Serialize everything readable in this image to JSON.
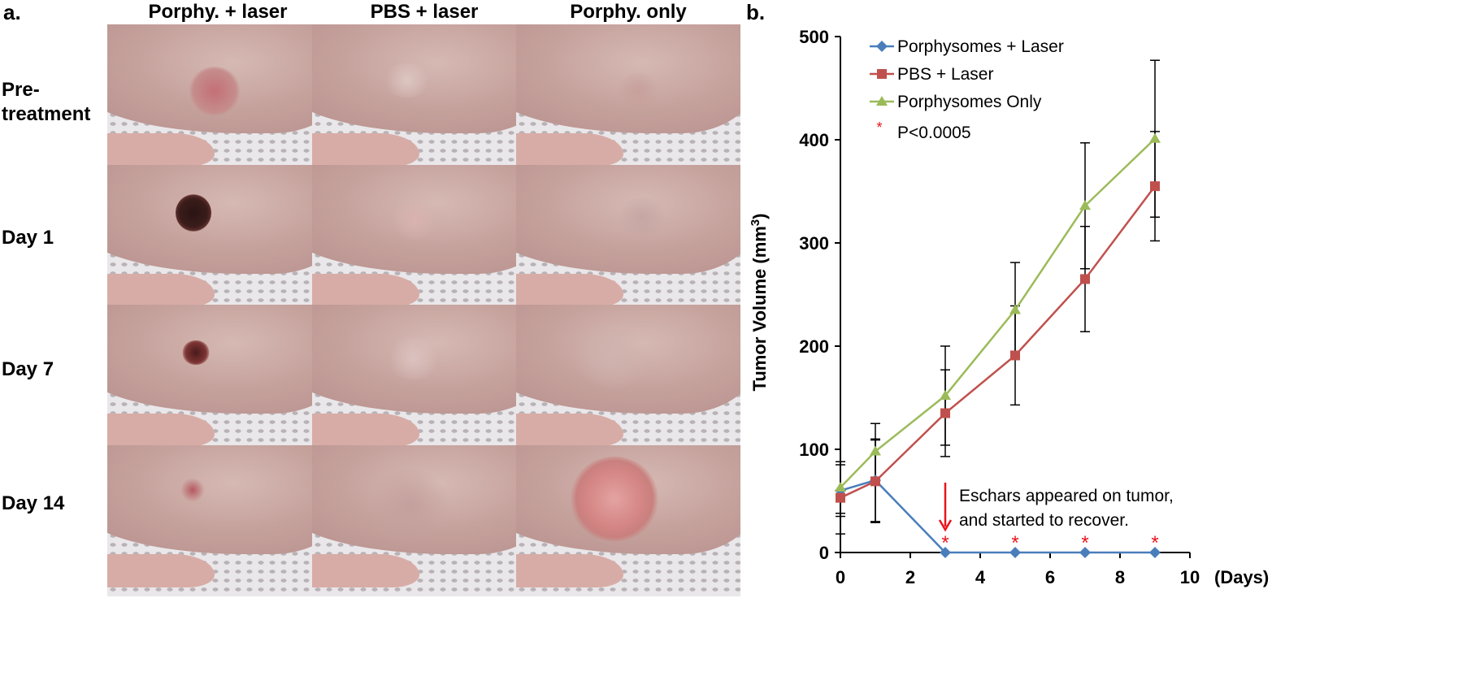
{
  "panel_a": {
    "label": "a.",
    "columns": [
      "Porphy. + laser",
      "PBS + laser",
      "Porphy. only"
    ],
    "rows": [
      "Pre-\ntreatment",
      "Day 1",
      "Day 7",
      "Day 14"
    ]
  },
  "panel_b": {
    "label": "b."
  },
  "chart_data": {
    "type": "line",
    "ylabel": "Tumor Volume (mm³)",
    "xunit_label": "(Days)",
    "xlim": [
      0,
      10
    ],
    "ylim": [
      0,
      500
    ],
    "xticks": [
      0,
      2,
      4,
      6,
      8,
      10
    ],
    "yticks": [
      0,
      100,
      200,
      300,
      400,
      500
    ],
    "grid": false,
    "legend_position": "top-left",
    "series": [
      {
        "name": "Porphysomes + Laser",
        "color": "#4a7ebb",
        "marker": "diamond",
        "x": [
          0,
          1,
          3,
          5,
          7,
          9
        ],
        "y": [
          60,
          70,
          0,
          0,
          0,
          0
        ],
        "err": [
          25,
          40,
          0,
          0,
          0,
          0
        ]
      },
      {
        "name": "PBS + Laser",
        "color": "#c0504d",
        "marker": "square",
        "x": [
          0,
          1,
          3,
          5,
          7,
          9
        ],
        "y": [
          53,
          69,
          135,
          191,
          265,
          355
        ],
        "err": [
          35,
          40,
          42,
          48,
          51,
          53
        ]
      },
      {
        "name": "Porphysomes Only",
        "color": "#9bbb59",
        "marker": "triangle",
        "x": [
          0,
          1,
          3,
          5,
          7,
          9
        ],
        "y": [
          63,
          98,
          152,
          235,
          336,
          401
        ],
        "err": [
          25,
          27,
          48,
          46,
          61,
          76
        ]
      }
    ],
    "significance": {
      "symbol": "*",
      "label": "P<0.0005",
      "color": "#e8141b",
      "x": [
        3,
        5,
        7,
        9
      ]
    },
    "annotation": {
      "lines": [
        "Eschars appeared on tumor,",
        "and started to recover."
      ],
      "arrow_x": 3
    }
  }
}
